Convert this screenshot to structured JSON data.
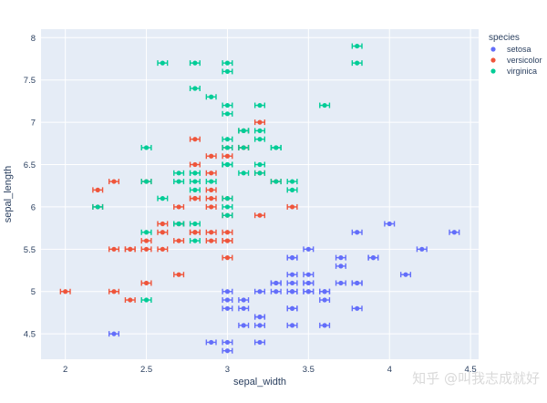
{
  "chart_data": {
    "type": "scatter",
    "xlabel": "sepal_width",
    "ylabel": "sepal_length",
    "xlim": [
      1.85,
      4.55
    ],
    "ylim": [
      4.2,
      8.1
    ],
    "x_ticks": [
      2,
      2.5,
      3,
      3.5,
      4,
      4.5
    ],
    "y_ticks": [
      4.5,
      5,
      5.5,
      6,
      6.5,
      7,
      7.5,
      8
    ],
    "grid": true,
    "legend": {
      "title": "species",
      "placement": "top-right"
    },
    "error_x": 0.03,
    "series": [
      {
        "name": "setosa",
        "color": "#636efa",
        "points": [
          [
            3.5,
            5.1
          ],
          [
            3.0,
            4.9
          ],
          [
            3.2,
            4.7
          ],
          [
            3.1,
            4.6
          ],
          [
            3.6,
            5.0
          ],
          [
            3.9,
            5.4
          ],
          [
            3.4,
            4.6
          ],
          [
            3.4,
            5.0
          ],
          [
            2.9,
            4.4
          ],
          [
            3.1,
            4.9
          ],
          [
            3.7,
            5.4
          ],
          [
            3.4,
            4.8
          ],
          [
            3.0,
            4.8
          ],
          [
            3.0,
            4.3
          ],
          [
            4.0,
            5.8
          ],
          [
            4.4,
            5.7
          ],
          [
            3.9,
            5.4
          ],
          [
            3.5,
            5.1
          ],
          [
            3.8,
            5.7
          ],
          [
            3.8,
            5.1
          ],
          [
            3.4,
            5.4
          ],
          [
            3.7,
            5.1
          ],
          [
            3.6,
            4.6
          ],
          [
            3.3,
            5.1
          ],
          [
            3.4,
            4.8
          ],
          [
            3.0,
            5.0
          ],
          [
            3.4,
            5.0
          ],
          [
            3.5,
            5.2
          ],
          [
            3.4,
            5.2
          ],
          [
            3.2,
            4.7
          ],
          [
            3.1,
            4.8
          ],
          [
            3.4,
            5.4
          ],
          [
            4.1,
            5.2
          ],
          [
            4.2,
            5.5
          ],
          [
            3.2,
            5.0
          ],
          [
            3.5,
            5.5
          ],
          [
            3.6,
            4.9
          ],
          [
            3.0,
            4.4
          ],
          [
            3.4,
            5.1
          ],
          [
            3.5,
            5.0
          ],
          [
            2.3,
            4.5
          ],
          [
            3.2,
            4.4
          ],
          [
            3.5,
            5.0
          ],
          [
            3.8,
            5.1
          ],
          [
            3.8,
            4.8
          ],
          [
            3.2,
            4.6
          ],
          [
            3.7,
            5.3
          ],
          [
            3.3,
            5.0
          ],
          [
            3.6,
            5.0
          ],
          [
            3.3,
            5.1
          ]
        ]
      },
      {
        "name": "versicolor",
        "color": "#ef553b",
        "points": [
          [
            3.2,
            7.0
          ],
          [
            3.2,
            6.4
          ],
          [
            3.1,
            6.9
          ],
          [
            2.3,
            5.5
          ],
          [
            2.8,
            6.5
          ],
          [
            2.8,
            5.7
          ],
          [
            3.3,
            6.3
          ],
          [
            2.4,
            4.9
          ],
          [
            2.9,
            6.6
          ],
          [
            2.7,
            5.2
          ],
          [
            2.0,
            5.0
          ],
          [
            3.0,
            5.9
          ],
          [
            2.2,
            6.0
          ],
          [
            2.9,
            6.1
          ],
          [
            2.9,
            5.6
          ],
          [
            3.1,
            6.7
          ],
          [
            3.0,
            5.6
          ],
          [
            2.7,
            5.8
          ],
          [
            2.2,
            6.2
          ],
          [
            2.5,
            5.6
          ],
          [
            3.2,
            5.9
          ],
          [
            2.8,
            6.1
          ],
          [
            2.5,
            6.3
          ],
          [
            2.8,
            6.1
          ],
          [
            2.9,
            6.4
          ],
          [
            3.0,
            6.6
          ],
          [
            2.8,
            6.8
          ],
          [
            3.0,
            6.7
          ],
          [
            2.9,
            6.0
          ],
          [
            2.6,
            5.7
          ],
          [
            2.4,
            5.5
          ],
          [
            2.4,
            5.5
          ],
          [
            2.7,
            5.8
          ],
          [
            2.7,
            6.0
          ],
          [
            3.0,
            5.4
          ],
          [
            3.4,
            6.0
          ],
          [
            3.1,
            6.7
          ],
          [
            2.3,
            6.3
          ],
          [
            3.0,
            5.6
          ],
          [
            2.5,
            5.5
          ],
          [
            2.6,
            5.5
          ],
          [
            3.0,
            6.1
          ],
          [
            2.6,
            5.8
          ],
          [
            2.3,
            5.0
          ],
          [
            2.7,
            5.6
          ],
          [
            3.0,
            5.7
          ],
          [
            2.9,
            5.7
          ],
          [
            2.9,
            6.2
          ],
          [
            2.5,
            5.1
          ],
          [
            2.8,
            5.7
          ]
        ]
      },
      {
        "name": "virginica",
        "color": "#00cc96",
        "points": [
          [
            3.3,
            6.3
          ],
          [
            2.7,
            5.8
          ],
          [
            3.0,
            7.1
          ],
          [
            2.9,
            6.3
          ],
          [
            3.0,
            6.5
          ],
          [
            3.0,
            7.6
          ],
          [
            2.5,
            4.9
          ],
          [
            2.9,
            7.3
          ],
          [
            2.5,
            6.7
          ],
          [
            3.6,
            7.2
          ],
          [
            3.2,
            6.5
          ],
          [
            2.7,
            6.4
          ],
          [
            3.0,
            6.8
          ],
          [
            2.5,
            5.7
          ],
          [
            2.8,
            5.8
          ],
          [
            3.2,
            6.4
          ],
          [
            3.0,
            6.5
          ],
          [
            3.8,
            7.7
          ],
          [
            2.6,
            7.7
          ],
          [
            2.2,
            6.0
          ],
          [
            3.2,
            6.9
          ],
          [
            2.8,
            5.6
          ],
          [
            2.8,
            7.7
          ],
          [
            2.7,
            6.3
          ],
          [
            3.3,
            6.7
          ],
          [
            3.2,
            7.2
          ],
          [
            2.8,
            6.2
          ],
          [
            3.0,
            6.1
          ],
          [
            2.8,
            6.4
          ],
          [
            3.0,
            7.2
          ],
          [
            2.8,
            7.4
          ],
          [
            3.8,
            7.9
          ],
          [
            2.8,
            6.4
          ],
          [
            2.8,
            6.3
          ],
          [
            2.6,
            6.1
          ],
          [
            3.0,
            7.7
          ],
          [
            3.4,
            6.3
          ],
          [
            3.1,
            6.4
          ],
          [
            3.0,
            6.0
          ],
          [
            3.1,
            6.9
          ],
          [
            3.1,
            6.7
          ],
          [
            3.1,
            6.9
          ],
          [
            2.7,
            5.8
          ],
          [
            3.2,
            6.8
          ],
          [
            3.3,
            6.7
          ],
          [
            3.0,
            6.7
          ],
          [
            2.5,
            6.3
          ],
          [
            3.0,
            6.5
          ],
          [
            3.4,
            6.2
          ],
          [
            3.0,
            5.9
          ]
        ]
      }
    ]
  },
  "watermark": "知乎 @叫我志成就好"
}
